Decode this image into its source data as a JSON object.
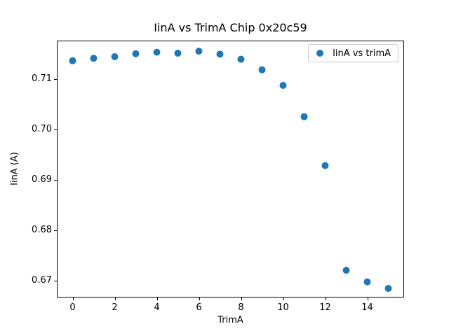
{
  "chart_data": {
    "type": "scatter",
    "title": "IinA vs TrimA Chip 0x20c59",
    "xlabel": "TrimA",
    "ylabel": "IinA (A)",
    "legend": {
      "label": "IinA vs trimA",
      "position": "upper right"
    },
    "series": [
      {
        "name": "IinA vs trimA",
        "x": [
          0,
          1,
          2,
          3,
          4,
          5,
          6,
          7,
          8,
          9,
          10,
          11,
          12,
          13,
          14,
          15
        ],
        "y": [
          0.7136,
          0.7141,
          0.7144,
          0.715,
          0.7153,
          0.7151,
          0.7155,
          0.7149,
          0.7139,
          0.7118,
          0.7087,
          0.7025,
          0.6928,
          0.672,
          0.6697,
          0.6684
        ]
      }
    ],
    "xlim": [
      -0.75,
      15.75
    ],
    "ylim": [
      0.6666,
      0.7176
    ],
    "xticks": {
      "values": [
        0,
        2,
        4,
        6,
        8,
        10,
        12,
        14
      ],
      "labels": [
        "0",
        "2",
        "4",
        "6",
        "8",
        "10",
        "12",
        "14"
      ]
    },
    "yticks": {
      "values": [
        0.67,
        0.68,
        0.69,
        0.7,
        0.71
      ],
      "labels": [
        "0.67",
        "0.68",
        "0.69",
        "0.70",
        "0.71"
      ]
    },
    "grid": false,
    "marker": {
      "color": "#1f77b4",
      "radius_px": 5
    },
    "colors": {
      "background": "#ffffff",
      "spine": "#000000",
      "text": "#000000",
      "legend_border": "#cccccc"
    }
  }
}
